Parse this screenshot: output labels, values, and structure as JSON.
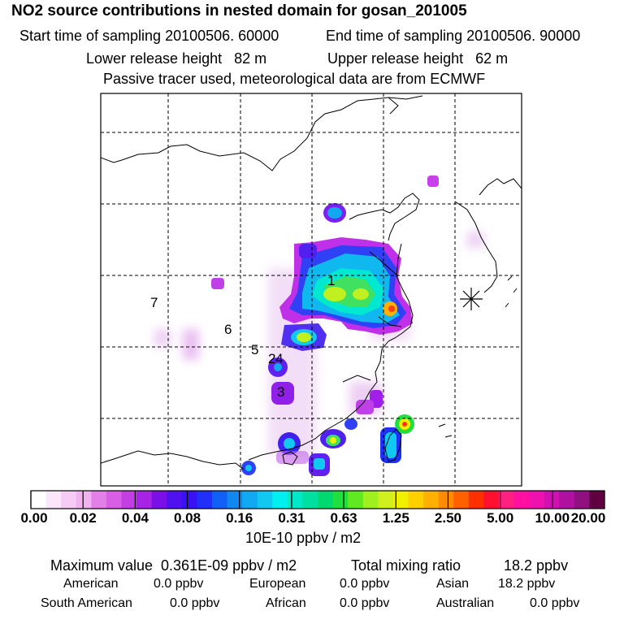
{
  "header": {
    "title": "NO2 source contributions in nested domain for gosan_201005",
    "start_time": "Start time of sampling 20100506. 60000",
    "end_time": "End time of sampling 20100506. 90000",
    "lower_release": "Lower release height   82 m",
    "upper_release": "Upper release height   62 m",
    "note": "Passive tracer used, meteorological data are from ECMWF"
  },
  "map": {
    "region_labels": [
      "1",
      "2",
      "4",
      "5",
      "6",
      "7",
      "3"
    ],
    "receptor_marker": "asterisk-receptor-icon"
  },
  "colorbar": {
    "tick_labels": [
      "0.00",
      "0.02",
      "0.04",
      "0.08",
      "0.16",
      "0.31",
      "0.63",
      "1.25",
      "2.50",
      "5.00",
      "10.00",
      "20.00"
    ],
    "units": "10E-10 ppbv / m2",
    "colors": [
      "#ffffff",
      "#fbe6fb",
      "#f6ccf6",
      "#f0b3f0",
      "#e37fe8",
      "#d85ee6",
      "#c43ee6",
      "#a724e6",
      "#7a10e6",
      "#5010f0",
      "#3a10f5",
      "#2030f8",
      "#1060f5",
      "#1088f0",
      "#10a8f0",
      "#10c8f0",
      "#00f0f0",
      "#00e8c8",
      "#00e0a0",
      "#00d870",
      "#20e040",
      "#60e820",
      "#a0f020",
      "#d0f020",
      "#f0f000",
      "#ffd000",
      "#ffb000",
      "#ff8c00",
      "#ff6000",
      "#ff3000",
      "#ff1030",
      "#ff2080",
      "#ff10a0",
      "#ef10b0",
      "#d010b0",
      "#b010a0",
      "#901080",
      "#600040"
    ]
  },
  "stats": {
    "max_label": "Maximum value  0.361E-09 ppbv / m2",
    "total_label": "Total mixing ratio",
    "total_value": "18.2 ppbv",
    "american_label": "American",
    "american_value": "0.0 ppbv",
    "european_label": "European",
    "european_value": "0.0 ppbv",
    "asian_label": "Asian",
    "asian_value": "18.2 ppbv",
    "south_american_label": "South American",
    "south_american_value": "0.0 ppbv",
    "african_label": "African",
    "african_value": "0.0 ppbv",
    "australian_label": "Australian",
    "australian_value": "0.0 ppbv"
  }
}
